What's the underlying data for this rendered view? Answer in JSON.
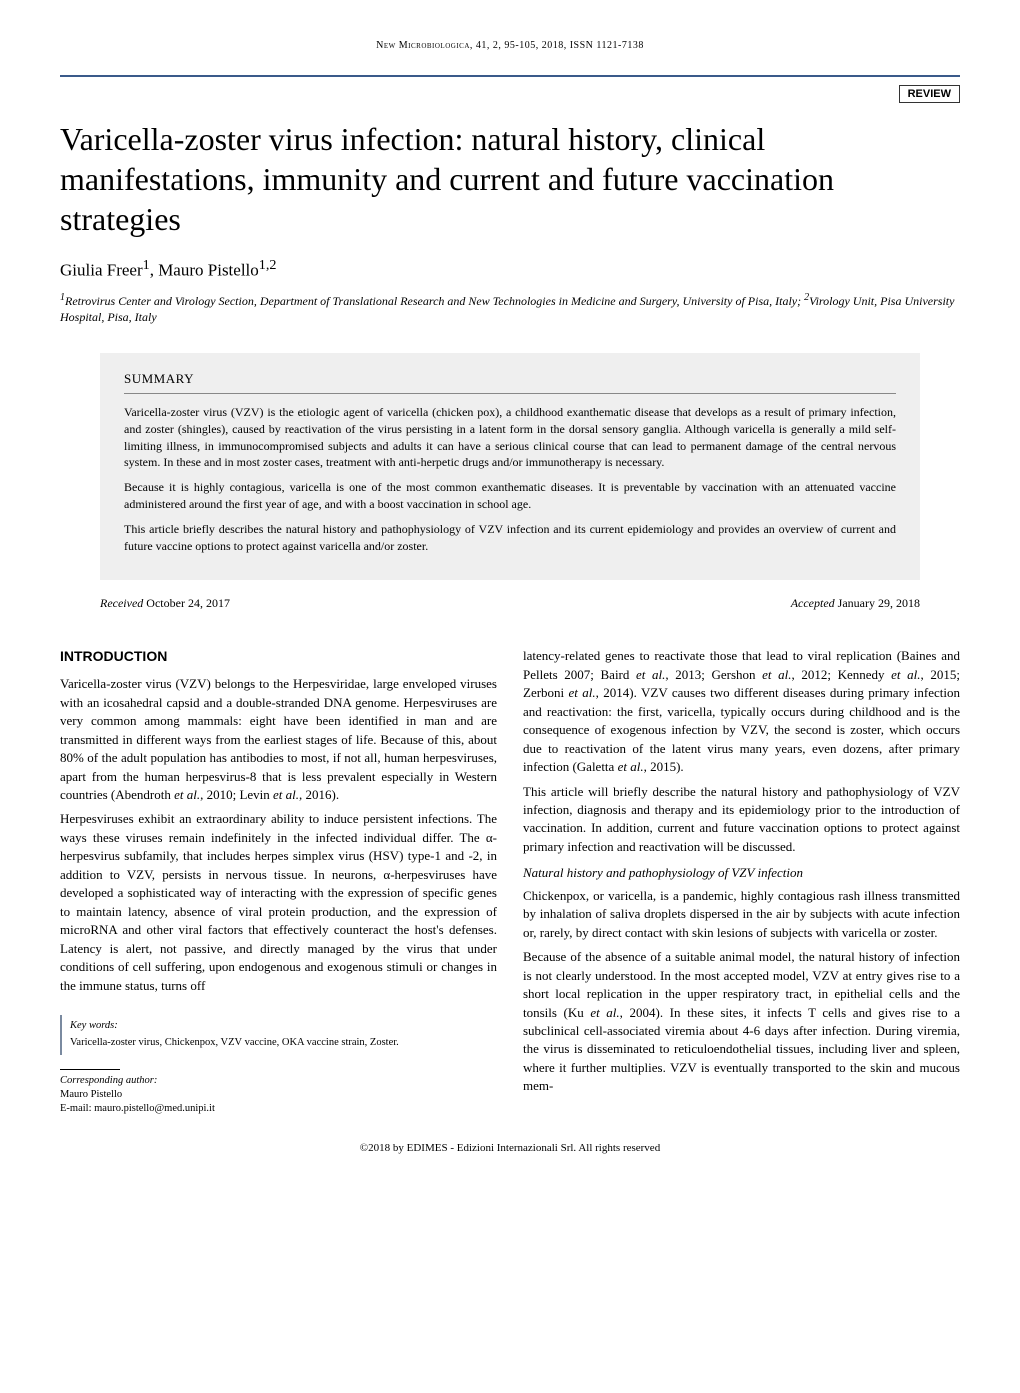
{
  "running_head": "New Microbiologica, 41, 2, 95-105, 2018, ISSN 1121-7138",
  "badge": "REVIEW",
  "title": "Varicella-zoster virus infection: natural history, clinical manifestations, immunity and current and future vaccination strategies",
  "authors_html": "Giulia Freer<sup>1</sup>, Mauro Pistello<sup>1,2</sup>",
  "affiliations_html": "<sup>1</sup>Retrovirus Center and Virology Section, Department of Translational Research and New Technologies in Medicine and Surgery, University of Pisa, Italy; <sup>2</sup>Virology Unit, Pisa University Hospital, Pisa, Italy",
  "summary": {
    "heading": "SUMMARY",
    "paragraphs": [
      "Varicella-zoster virus (VZV) is the etiologic agent of varicella (chicken pox), a childhood exanthematic disease that develops as a result of primary infection, and zoster (shingles), caused by reactivation of the virus persisting in a latent form in the dorsal sensory ganglia. Although varicella is generally a mild self-limiting illness, in immunocompromised subjects and adults it can have a serious clinical course that can lead to permanent damage of the central nervous system. In these and in most zoster cases, treatment with anti-herpetic drugs and/or immunotherapy is necessary.",
      "Because it is highly contagious, varicella is one of the most common exanthematic diseases. It is preventable by vaccination with an attenuated vaccine administered around the first year of age, and with a boost vaccination in school age.",
      "This article briefly describes the natural history and pathophysiology of VZV infection and its current epidemiology and provides an overview of current and future vaccine options to protect against varicella and/or zoster."
    ]
  },
  "dates": {
    "received_label": "Received",
    "received_value": "October 24, 2017",
    "accepted_label": "Accepted",
    "accepted_value": "January 29, 2018"
  },
  "body": {
    "section_heading": "INTRODUCTION",
    "left_paragraphs": [
      "Varicella-zoster virus (VZV) belongs to the Herpesviridae, large enveloped viruses with an icosahedral capsid and a double-stranded DNA genome. Herpesviruses are very common among mammals: eight have been identified in man and are transmitted in different ways from the earliest stages of life. Because of this, about 80% of the adult population has antibodies to most, if not all, human herpesviruses, apart from the human herpesvirus-8 that is less prevalent especially in Western countries (Abendroth <i>et al.</i>, 2010; Levin <i>et al.</i>, 2016).",
      "Herpesviruses exhibit an extraordinary ability to induce persistent infections. The ways these viruses remain indefinitely in the infected individual differ. The α-herpesvirus subfamily, that includes herpes simplex virus (HSV) type-1 and -2, in addition to VZV, persists in nervous tissue. In neurons, α-herpesviruses have developed a sophisticated way of interacting with the expression of specific genes to maintain latency, absence of viral protein production, and the expression of microRNA and other viral factors that effectively counteract the host's defenses. Latency is alert, not passive, and directly managed by the virus that under conditions of cell suffering, upon endogenous and exogenous stimuli or changes in the immune status, turns off"
    ],
    "right_paragraphs": [
      "latency-related genes to reactivate those that lead to viral replication (Baines and Pellets 2007; Baird <i>et al.</i>, 2013; Gershon <i>et al.</i>, 2012; Kennedy <i>et al.</i>, 2015; Zerboni <i>et al.</i>, 2014). VZV causes two different diseases during primary infection and reactivation: the first, varicella, typically occurs during childhood and is the consequence of exogenous infection by VZV, the second is zoster, which occurs due to reactivation of the latent virus many years, even dozens, after primary infection (Galetta <i>et al.</i>, 2015).",
      "This article will briefly describe the natural history and pathophysiology of VZV infection, diagnosis and therapy and its epidemiology prior to the introduction of vaccination. In addition, current and future vaccination options to protect against primary infection and reactivation will be discussed."
    ],
    "subheading": "Natural history and pathophysiology of VZV infection",
    "right_paragraphs_2": [
      "Chickenpox, or varicella, is a pandemic, highly contagious rash illness transmitted by inhalation of saliva droplets dispersed in the air by subjects with acute infection or, rarely, by direct contact with skin lesions of subjects with varicella or zoster.",
      "Because of the absence of a suitable animal model, the natural history of infection is not clearly understood. In the most accepted model, VZV at entry gives rise to a short local replication in the upper respiratory tract, in epithelial cells and the tonsils (Ku <i>et al.</i>, 2004). In these sites, it infects T cells and gives rise to a subclinical cell-associated viremia about 4-6 days after infection. During viremia, the virus is disseminated to reticuloendothelial tissues, including liver and spleen, where it further multiplies. VZV is eventually transported to the skin and mucous mem-"
    ]
  },
  "keywords": {
    "title": "Key words:",
    "text": "Varicella-zoster virus, Chickenpox, VZV vaccine, OKA vaccine strain, Zoster."
  },
  "corresponding": {
    "label": "Corresponding author:",
    "name": "Mauro Pistello",
    "email": "E-mail: mauro.pistello@med.unipi.it"
  },
  "footer": "©2018 by EDIMES - Edizioni Internazionali Srl. All rights reserved",
  "colors": {
    "rule": "#3a5a8a",
    "summary_bg": "#efefef",
    "kw_border": "#7a8aa0"
  }
}
